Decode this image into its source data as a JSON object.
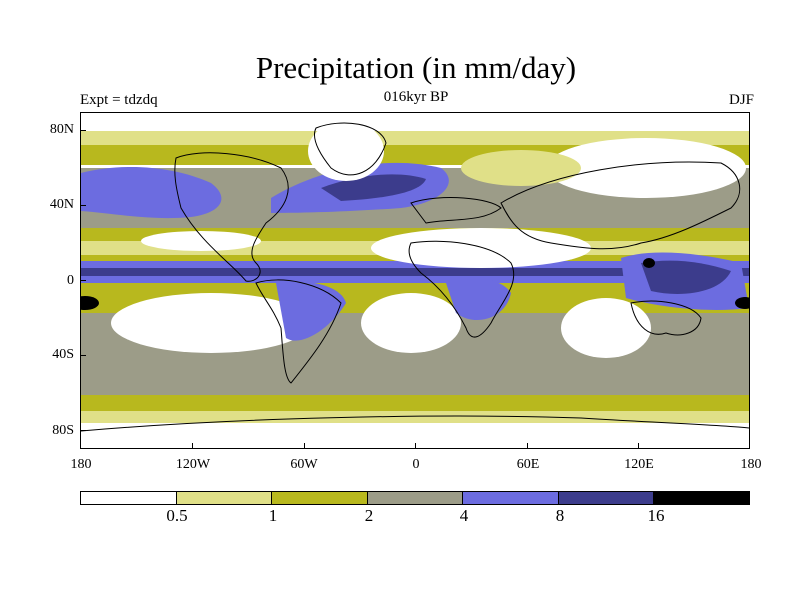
{
  "header": {
    "title": "Precipitation (in mm/day)",
    "subtitle": "016kyr BP",
    "left_label": "Expt = tdzdq",
    "right_label": "DJF"
  },
  "map": {
    "y_axis_labels": [
      "80N",
      "40N",
      "0",
      "40S",
      "80S"
    ],
    "x_axis_labels": [
      "180",
      "120W",
      "60W",
      "0",
      "60E",
      "120E",
      "180"
    ]
  },
  "legend": {
    "colors": [
      "#ffffff",
      "#e0e088",
      "#b8b81e",
      "#9c9c88",
      "#6c6ce0",
      "#3c3c8c",
      "#000000"
    ],
    "labels": [
      "0.5",
      "1",
      "2",
      "4",
      "8",
      "16"
    ]
  }
}
